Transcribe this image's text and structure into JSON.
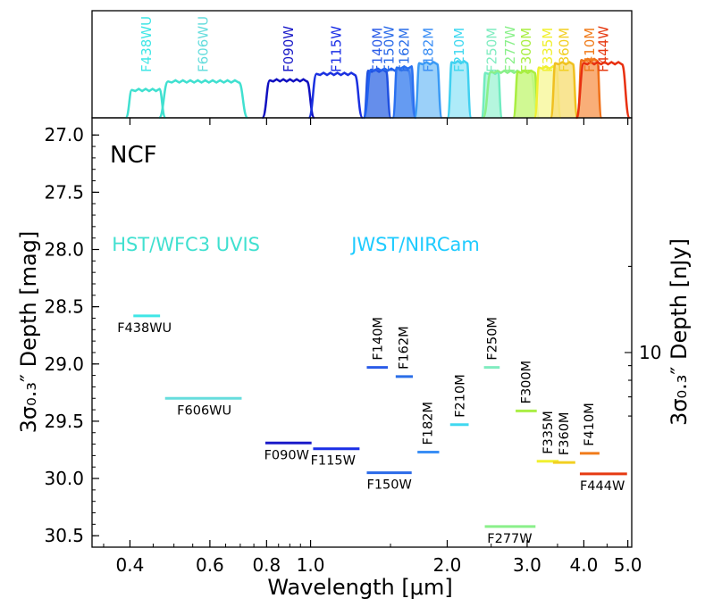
{
  "chart_data": {
    "type": "scatter",
    "field": "NCF",
    "xlabel": "Wavelength [μm]",
    "ylabel_left": "3σ₀.₃″ Depth [mag]",
    "ylabel_right": "3σ₀.₃″ Depth [nJy]",
    "xscale": "log",
    "xlim": [
      0.33,
      5.1
    ],
    "ylim": [
      30.6,
      26.85
    ],
    "xticks": [
      {
        "value": 0.4,
        "label": "0.4"
      },
      {
        "value": 0.6,
        "label": "0.6"
      },
      {
        "value": 0.8,
        "label": "0.8"
      },
      {
        "value": 1.0,
        "label": "1.0"
      },
      {
        "value": 2.0,
        "label": "2.0"
      },
      {
        "value": 3.0,
        "label": "3.0"
      },
      {
        "value": 4.0,
        "label": "4.0"
      },
      {
        "value": 5.0,
        "label": "5.0"
      }
    ],
    "yticks": [
      {
        "value": 27.0,
        "label": "27.0"
      },
      {
        "value": 27.5,
        "label": "27.5"
      },
      {
        "value": 28.0,
        "label": "28.0"
      },
      {
        "value": 28.5,
        "label": "28.5"
      },
      {
        "value": 29.0,
        "label": "29.0"
      },
      {
        "value": 29.5,
        "label": "29.5"
      },
      {
        "value": 30.0,
        "label": "30.0"
      },
      {
        "value": 30.5,
        "label": "30.5"
      }
    ],
    "right_ticks": [
      {
        "value": 10,
        "label": "10"
      }
    ],
    "instrument_labels": [
      {
        "text": "HST/WFC3 UVIS",
        "color": "#40e0d0",
        "wl": 0.365,
        "mag": 27.95
      },
      {
        "text": "JWST/NIRCam",
        "color": "#1ecbff",
        "wl": 1.23,
        "mag": 27.95
      }
    ],
    "series": [
      {
        "name": "F438WU",
        "wl_min": 0.407,
        "wl_max": 0.466,
        "depth_mag": 28.58,
        "color": "#40e6e6",
        "label_pos": "below",
        "label_wl": 0.375
      },
      {
        "name": "F606WU",
        "wl_min": 0.478,
        "wl_max": 0.705,
        "depth_mag": 29.3,
        "color": "#66dddd",
        "label_pos": "below",
        "label_wl": 0.508
      },
      {
        "name": "F090W",
        "wl_min": 0.795,
        "wl_max": 1.005,
        "depth_mag": 29.69,
        "color": "#1a1ac8",
        "label_pos": "below",
        "label_wl": 0.79
      },
      {
        "name": "F115W",
        "wl_min": 1.013,
        "wl_max": 1.282,
        "depth_mag": 29.74,
        "color": "#1a2ee6",
        "label_pos": "below",
        "label_wl": 1.0
      },
      {
        "name": "F140M",
        "wl_min": 1.33,
        "wl_max": 1.48,
        "depth_mag": 29.03,
        "color": "#2a5be8",
        "label_pos": "above",
        "label_wl": 1.405
      },
      {
        "name": "F150W",
        "wl_min": 1.33,
        "wl_max": 1.67,
        "depth_mag": 29.95,
        "color": "#2a6ae8",
        "label_pos": "below",
        "label_wl": 1.33
      },
      {
        "name": "F162M",
        "wl_min": 1.54,
        "wl_max": 1.68,
        "depth_mag": 29.11,
        "color": "#2a6ee8",
        "label_pos": "above",
        "label_wl": 1.6
      },
      {
        "name": "F182M",
        "wl_min": 1.72,
        "wl_max": 1.92,
        "depth_mag": 29.77,
        "color": "#3a8ef5",
        "label_pos": "above",
        "label_wl": 1.81
      },
      {
        "name": "F210M",
        "wl_min": 2.03,
        "wl_max": 2.23,
        "depth_mag": 29.53,
        "color": "#40d8f0",
        "label_pos": "above",
        "label_wl": 2.13
      },
      {
        "name": "F250M",
        "wl_min": 2.41,
        "wl_max": 2.61,
        "depth_mag": 29.03,
        "color": "#80ecc0",
        "label_pos": "above",
        "label_wl": 2.51
      },
      {
        "name": "F277W",
        "wl_min": 2.42,
        "wl_max": 3.13,
        "depth_mag": 30.42,
        "color": "#8af08a",
        "label_pos": "below",
        "label_wl": 2.45
      },
      {
        "name": "F300M",
        "wl_min": 2.83,
        "wl_max": 3.15,
        "depth_mag": 29.41,
        "color": "#aaee44",
        "label_pos": "above",
        "label_wl": 2.98
      },
      {
        "name": "F335M",
        "wl_min": 3.15,
        "wl_max": 3.52,
        "depth_mag": 29.85,
        "color": "#f0f030",
        "label_pos": "above",
        "label_wl": 3.33
      },
      {
        "name": "F360M",
        "wl_min": 3.42,
        "wl_max": 3.83,
        "depth_mag": 29.86,
        "color": "#f2cf22",
        "label_pos": "above",
        "label_wl": 3.61
      },
      {
        "name": "F410M",
        "wl_min": 3.92,
        "wl_max": 4.33,
        "depth_mag": 29.78,
        "color": "#f07b1a",
        "label_pos": "above",
        "label_wl": 4.1
      },
      {
        "name": "F444W",
        "wl_min": 3.92,
        "wl_max": 4.98,
        "depth_mag": 29.96,
        "color": "#e63a12",
        "label_pos": "below",
        "label_wl": 3.92
      }
    ],
    "transmission_curves": [
      {
        "name": "F438WU",
        "color": "#40e0d0",
        "fill": "none",
        "wl_min": 0.395,
        "wl_max": 0.475,
        "height": 0.26
      },
      {
        "name": "F606WU",
        "color": "#40e0d0",
        "fill": "none",
        "wl_min": 0.468,
        "wl_max": 0.72,
        "height": 0.34
      },
      {
        "name": "F090W",
        "color": "#1010c0",
        "fill": "none",
        "wl_min": 0.79,
        "wl_max": 1.01,
        "height": 0.35
      },
      {
        "name": "F115W",
        "color": "#1a30e0",
        "fill": "none",
        "wl_min": 1.0,
        "wl_max": 1.29,
        "height": 0.41
      },
      {
        "name": "F140M",
        "color": "#2050e0",
        "fill": "#4a7ae8",
        "wl_min": 1.32,
        "wl_max": 1.49,
        "height": 0.44
      },
      {
        "name": "F150W",
        "color": "#2060f0",
        "fill": "none",
        "wl_min": 1.32,
        "wl_max": 1.69,
        "height": 0.45
      },
      {
        "name": "F162M",
        "color": "#2a70f0",
        "fill": "#4a8af0",
        "wl_min": 1.53,
        "wl_max": 1.69,
        "height": 0.47
      },
      {
        "name": "F182M",
        "color": "#3a9af5",
        "fill": "#8ac8f8",
        "wl_min": 1.71,
        "wl_max": 1.93,
        "height": 0.51
      },
      {
        "name": "F210M",
        "color": "#40d0f0",
        "fill": "#a0e8f8",
        "wl_min": 2.02,
        "wl_max": 2.24,
        "height": 0.52
      },
      {
        "name": "F250M",
        "color": "#70ecc0",
        "fill": "#a8f4d8",
        "wl_min": 2.4,
        "wl_max": 2.62,
        "height": 0.42
      },
      {
        "name": "F277W",
        "color": "#8af08a",
        "fill": "none",
        "wl_min": 2.42,
        "wl_max": 3.15,
        "height": 0.43
      },
      {
        "name": "F300M",
        "color": "#a8ee40",
        "fill": "#c8f880",
        "wl_min": 2.82,
        "wl_max": 3.16,
        "height": 0.43
      },
      {
        "name": "F335M",
        "color": "#f0f030",
        "fill": "#f8f8a0",
        "wl_min": 3.14,
        "wl_max": 3.53,
        "height": 0.47
      },
      {
        "name": "F360M",
        "color": "#f0c020",
        "fill": "#f8e080",
        "wl_min": 3.41,
        "wl_max": 3.84,
        "height": 0.51
      },
      {
        "name": "F410M",
        "color": "#f07018",
        "fill": "#f8a060",
        "wl_min": 3.9,
        "wl_max": 4.34,
        "height": 0.54
      },
      {
        "name": "F444W",
        "color": "#e83010",
        "fill": "none",
        "wl_min": 3.88,
        "wl_max": 5.0,
        "height": 0.51
      }
    ]
  }
}
